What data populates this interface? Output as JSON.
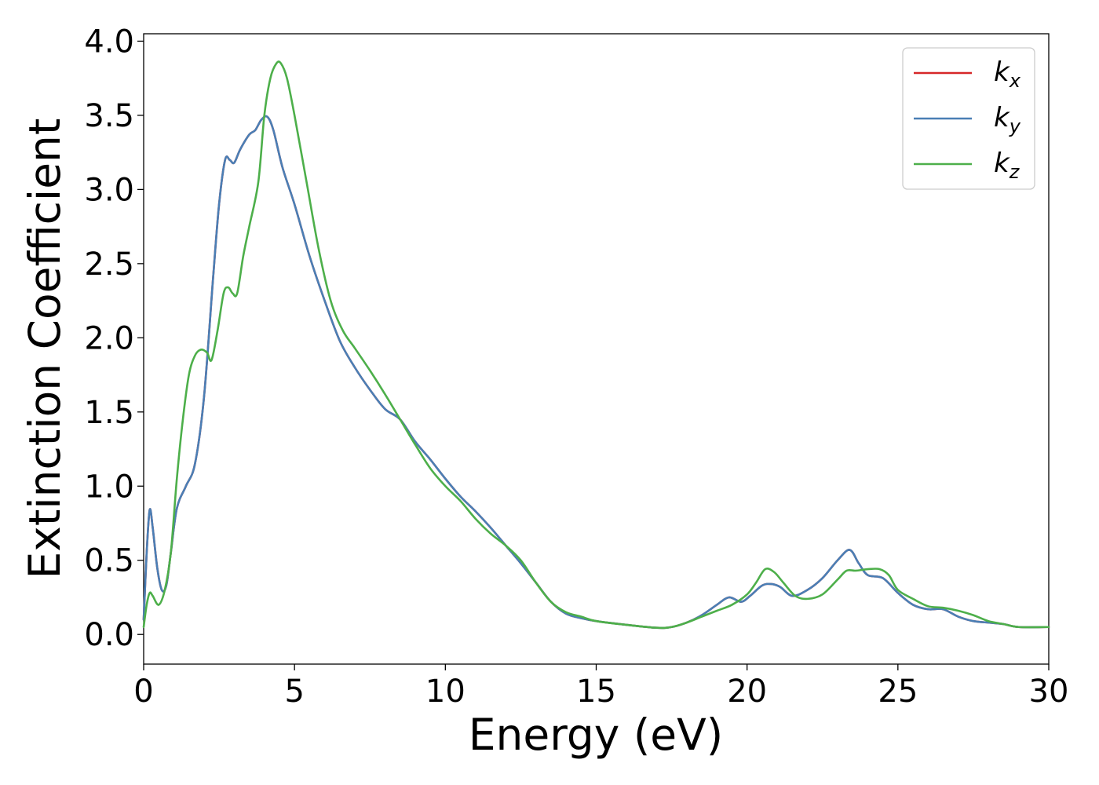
{
  "chart_data": {
    "type": "line",
    "title": "",
    "xlabel": "Energy (eV)",
    "ylabel": "Extinction Coefficient",
    "xlim": [
      0,
      30
    ],
    "ylim": [
      -0.2,
      4.05
    ],
    "xticks": [
      "0",
      "5",
      "10",
      "15",
      "20",
      "25",
      "30"
    ],
    "yticks": [
      "0.0",
      "0.5",
      "1.0",
      "1.5",
      "2.0",
      "2.5",
      "3.0",
      "3.5",
      "4.0"
    ],
    "grid": false,
    "legend_position": "top-right",
    "series": [
      {
        "name": "k",
        "subscript": "x",
        "color": "#d62728",
        "x": [
          0,
          0.1,
          0.2,
          0.3,
          0.45,
          0.6,
          0.75,
          0.9,
          1.1,
          1.4,
          1.7,
          2.0,
          2.3,
          2.5,
          2.7,
          2.85,
          3.0,
          3.2,
          3.5,
          3.7,
          3.9,
          4.1,
          4.3,
          4.6,
          5.0,
          5.5,
          6.0,
          6.5,
          7.0,
          7.5,
          8.0,
          8.5,
          9.0,
          9.5,
          10.0,
          10.5,
          11.0,
          11.5,
          12.0,
          12.5,
          13.0,
          13.5,
          14.0,
          14.5,
          15.0,
          16.0,
          17.0,
          17.5,
          18.0,
          18.5,
          19.0,
          19.4,
          19.8,
          20.1,
          20.5,
          20.8,
          21.1,
          21.5,
          22.0,
          22.5,
          23.0,
          23.4,
          23.7,
          24.0,
          24.5,
          25.0,
          25.5,
          26.0,
          26.5,
          27.0,
          27.5,
          28.0,
          28.5,
          29.0,
          30.0
        ],
        "y": [
          0.1,
          0.55,
          0.84,
          0.72,
          0.45,
          0.3,
          0.33,
          0.55,
          0.85,
          1.0,
          1.15,
          1.6,
          2.4,
          2.9,
          3.2,
          3.2,
          3.18,
          3.27,
          3.37,
          3.4,
          3.47,
          3.49,
          3.4,
          3.15,
          2.9,
          2.55,
          2.25,
          1.98,
          1.8,
          1.65,
          1.52,
          1.45,
          1.3,
          1.18,
          1.05,
          0.93,
          0.83,
          0.72,
          0.6,
          0.48,
          0.35,
          0.22,
          0.14,
          0.11,
          0.09,
          0.065,
          0.045,
          0.05,
          0.08,
          0.13,
          0.2,
          0.25,
          0.22,
          0.26,
          0.33,
          0.34,
          0.32,
          0.26,
          0.3,
          0.38,
          0.5,
          0.57,
          0.48,
          0.4,
          0.38,
          0.28,
          0.2,
          0.17,
          0.17,
          0.12,
          0.09,
          0.08,
          0.07,
          0.05,
          0.05
        ]
      },
      {
        "name": "k",
        "subscript": "y",
        "color": "#4a7fb5",
        "x": [
          0,
          0.1,
          0.2,
          0.3,
          0.45,
          0.6,
          0.75,
          0.9,
          1.1,
          1.4,
          1.7,
          2.0,
          2.3,
          2.5,
          2.7,
          2.85,
          3.0,
          3.2,
          3.5,
          3.7,
          3.9,
          4.1,
          4.3,
          4.6,
          5.0,
          5.5,
          6.0,
          6.5,
          7.0,
          7.5,
          8.0,
          8.5,
          9.0,
          9.5,
          10.0,
          10.5,
          11.0,
          11.5,
          12.0,
          12.5,
          13.0,
          13.5,
          14.0,
          14.5,
          15.0,
          16.0,
          17.0,
          17.5,
          18.0,
          18.5,
          19.0,
          19.4,
          19.8,
          20.1,
          20.5,
          20.8,
          21.1,
          21.5,
          22.0,
          22.5,
          23.0,
          23.4,
          23.7,
          24.0,
          24.5,
          25.0,
          25.5,
          26.0,
          26.5,
          27.0,
          27.5,
          28.0,
          28.5,
          29.0,
          30.0
        ],
        "y": [
          0.1,
          0.55,
          0.84,
          0.72,
          0.45,
          0.3,
          0.33,
          0.55,
          0.85,
          1.0,
          1.15,
          1.6,
          2.4,
          2.9,
          3.2,
          3.2,
          3.18,
          3.27,
          3.37,
          3.4,
          3.47,
          3.49,
          3.4,
          3.15,
          2.9,
          2.55,
          2.25,
          1.98,
          1.8,
          1.65,
          1.52,
          1.45,
          1.3,
          1.18,
          1.05,
          0.93,
          0.83,
          0.72,
          0.6,
          0.48,
          0.35,
          0.22,
          0.14,
          0.11,
          0.09,
          0.065,
          0.045,
          0.05,
          0.08,
          0.13,
          0.2,
          0.25,
          0.22,
          0.26,
          0.33,
          0.34,
          0.32,
          0.26,
          0.3,
          0.38,
          0.5,
          0.57,
          0.48,
          0.4,
          0.38,
          0.28,
          0.2,
          0.17,
          0.17,
          0.12,
          0.09,
          0.08,
          0.07,
          0.05,
          0.05
        ]
      },
      {
        "name": "k",
        "subscript": "z",
        "color": "#4daf4a",
        "x": [
          0,
          0.1,
          0.2,
          0.3,
          0.5,
          0.7,
          0.9,
          1.1,
          1.3,
          1.5,
          1.7,
          1.9,
          2.1,
          2.25,
          2.45,
          2.65,
          2.8,
          2.95,
          3.1,
          3.3,
          3.5,
          3.8,
          4.0,
          4.2,
          4.4,
          4.55,
          4.75,
          5.0,
          5.4,
          5.8,
          6.2,
          6.6,
          7.0,
          7.5,
          8.0,
          8.5,
          9.0,
          9.5,
          10.0,
          10.5,
          11.0,
          11.5,
          12.0,
          12.5,
          13.0,
          13.5,
          14.0,
          14.5,
          15.0,
          16.0,
          17.0,
          17.5,
          18.0,
          18.5,
          19.0,
          19.5,
          20.0,
          20.3,
          20.6,
          20.9,
          21.2,
          21.6,
          22.0,
          22.5,
          23.0,
          23.3,
          23.6,
          24.0,
          24.4,
          24.7,
          25.0,
          25.5,
          26.0,
          26.5,
          27.0,
          27.5,
          28.0,
          28.5,
          29.0,
          30.0
        ],
        "y": [
          0.05,
          0.2,
          0.28,
          0.26,
          0.2,
          0.3,
          0.55,
          1.05,
          1.45,
          1.75,
          1.88,
          1.92,
          1.9,
          1.85,
          2.05,
          2.3,
          2.34,
          2.3,
          2.3,
          2.55,
          2.75,
          3.05,
          3.5,
          3.75,
          3.85,
          3.85,
          3.75,
          3.5,
          3.05,
          2.6,
          2.25,
          2.05,
          1.93,
          1.78,
          1.62,
          1.45,
          1.28,
          1.12,
          1.0,
          0.9,
          0.78,
          0.68,
          0.6,
          0.5,
          0.35,
          0.22,
          0.15,
          0.12,
          0.09,
          0.065,
          0.045,
          0.05,
          0.08,
          0.12,
          0.16,
          0.2,
          0.27,
          0.35,
          0.44,
          0.42,
          0.35,
          0.26,
          0.24,
          0.27,
          0.37,
          0.43,
          0.43,
          0.44,
          0.44,
          0.4,
          0.3,
          0.24,
          0.19,
          0.18,
          0.16,
          0.13,
          0.09,
          0.07,
          0.05,
          0.05
        ]
      }
    ]
  }
}
